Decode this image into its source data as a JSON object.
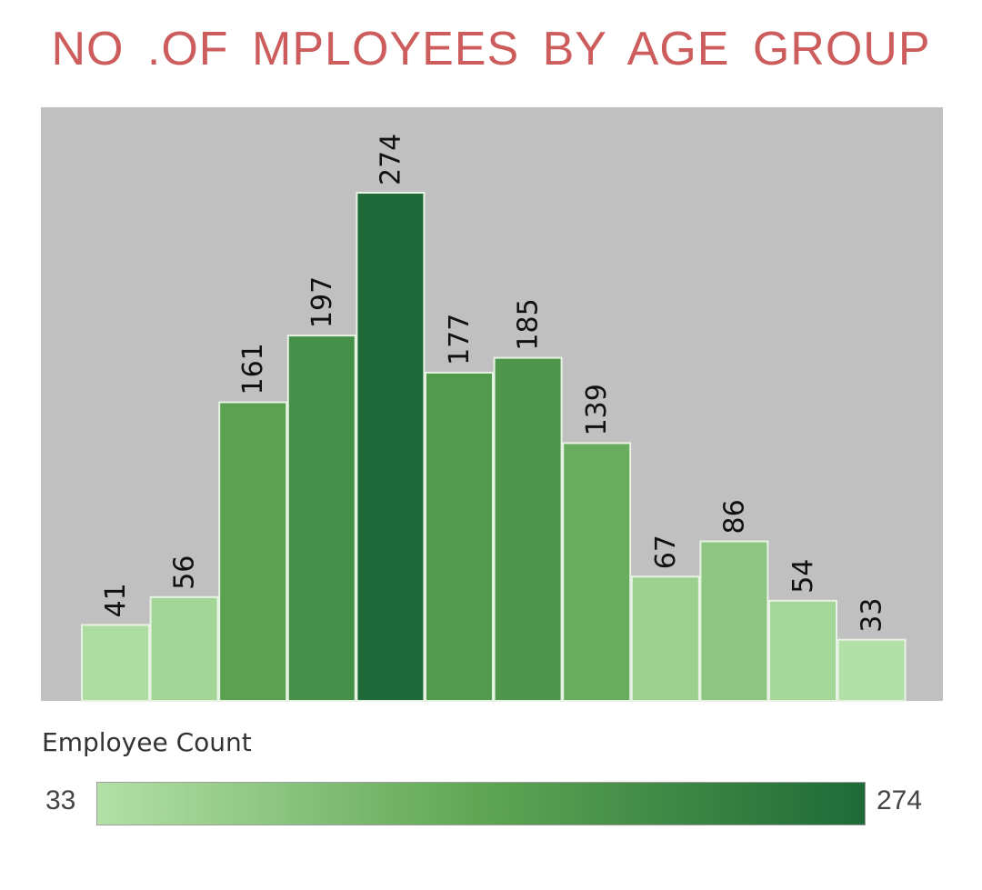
{
  "chart_data": {
    "type": "bar",
    "title": "NO .OF MPLOYEES BY AGE GROUP",
    "values": [
      41,
      56,
      161,
      197,
      274,
      177,
      185,
      139,
      67,
      86,
      54,
      33
    ],
    "ylim": [
      0,
      274
    ],
    "grid": false,
    "legend": {
      "title": "Employee Count",
      "min": "33",
      "max": "274",
      "placement": "bottom"
    }
  },
  "colors": {
    "title": "#cd5c5c",
    "plot_background": "#c0c0c0",
    "color_low": "#b3e0a6",
    "color_mid": "#5ea653",
    "color_high": "#1f6a38",
    "bar_border": "#e8f2e4"
  }
}
